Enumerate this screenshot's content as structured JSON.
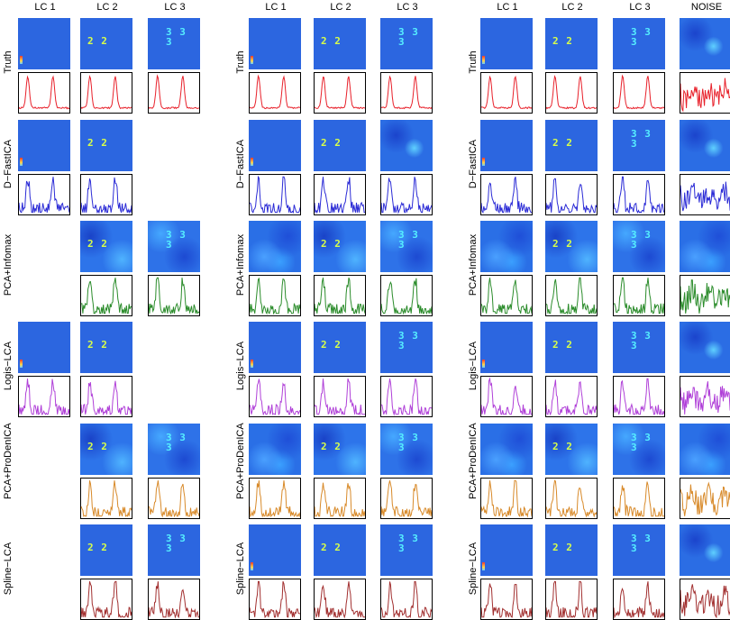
{
  "panels": [
    {
      "id": "panel-1",
      "columns": [
        "LC 1",
        "LC 2",
        "LC 3"
      ],
      "rows": [
        {
          "label": "Truth",
          "color": "#e8202a",
          "cells": [
            {
              "empty": false,
              "img": "lc1"
            },
            {
              "empty": false,
              "img": "lc2",
              "text": "2 2"
            },
            {
              "empty": false,
              "img": "lc3",
              "text": "3 3 3"
            }
          ]
        },
        {
          "label": "D−FastICA",
          "color": "#2b2bd6",
          "cells": [
            {
              "empty": false,
              "img": "lc1"
            },
            {
              "empty": false,
              "img": "lc2",
              "text": "2 2"
            },
            {
              "empty": true
            }
          ]
        },
        {
          "label": "PCA+Infomax",
          "color": "#2b8c2b",
          "cells": [
            {
              "empty": true
            },
            {
              "empty": false,
              "img": "mix2",
              "text": "2 2"
            },
            {
              "empty": false,
              "img": "mix3",
              "text": "3 3 3"
            }
          ]
        },
        {
          "label": "Logis−LCA",
          "color": "#b040d8",
          "cells": [
            {
              "empty": false,
              "img": "lc1"
            },
            {
              "empty": false,
              "img": "lc2",
              "text": "2 2"
            },
            {
              "empty": true
            }
          ]
        },
        {
          "label": "PCA+ProDenICA",
          "color": "#d88a2a",
          "cells": [
            {
              "empty": true
            },
            {
              "empty": false,
              "img": "mix2",
              "text": "2 2"
            },
            {
              "empty": false,
              "img": "mix3",
              "text": "3 3 3"
            }
          ]
        },
        {
          "label": "Spline−LCA",
          "color": "#a23030",
          "cells": [
            {
              "empty": true
            },
            {
              "empty": false,
              "img": "lc2",
              "text": "2 2"
            },
            {
              "empty": false,
              "img": "lc3",
              "text": "3 3 3"
            }
          ]
        }
      ]
    },
    {
      "id": "panel-2",
      "columns": [
        "LC 1",
        "LC 2",
        "LC 3"
      ],
      "rows": [
        {
          "label": "Truth",
          "color": "#e8202a",
          "cells": [
            {
              "empty": false,
              "img": "lc1"
            },
            {
              "empty": false,
              "img": "lc2",
              "text": "2 2"
            },
            {
              "empty": false,
              "img": "lc3",
              "text": "3 3 3"
            }
          ]
        },
        {
          "label": "D−FastICA",
          "color": "#2b2bd6",
          "cells": [
            {
              "empty": false,
              "img": "lc1"
            },
            {
              "empty": false,
              "img": "lc2",
              "text": "2 2"
            },
            {
              "empty": false,
              "img": "noise"
            }
          ]
        },
        {
          "label": "PCA+Infomax",
          "color": "#2b8c2b",
          "cells": [
            {
              "empty": false,
              "img": "blob"
            },
            {
              "empty": false,
              "img": "mix2",
              "text": "2 2"
            },
            {
              "empty": false,
              "img": "mix3",
              "text": "3 3 3"
            }
          ]
        },
        {
          "label": "Logis−LCA",
          "color": "#b040d8",
          "cells": [
            {
              "empty": false,
              "img": "lc1"
            },
            {
              "empty": false,
              "img": "lc2",
              "text": "2 2"
            },
            {
              "empty": false,
              "img": "lc3",
              "text": "3 3 3"
            }
          ]
        },
        {
          "label": "PCA+ProDenICA",
          "color": "#d88a2a",
          "cells": [
            {
              "empty": false,
              "img": "blob"
            },
            {
              "empty": false,
              "img": "mix2",
              "text": "2 2"
            },
            {
              "empty": false,
              "img": "mix3",
              "text": "3 3 3"
            }
          ]
        },
        {
          "label": "Spline−LCA",
          "color": "#a23030",
          "cells": [
            {
              "empty": false,
              "img": "lc1"
            },
            {
              "empty": false,
              "img": "lc2",
              "text": "2 2"
            },
            {
              "empty": false,
              "img": "lc3",
              "text": "3 3 3"
            }
          ]
        }
      ]
    },
    {
      "id": "panel-3",
      "columns": [
        "LC 1",
        "LC 2",
        "LC 3",
        "NOISE"
      ],
      "rows": [
        {
          "label": "Truth",
          "color": "#e8202a",
          "cells": [
            {
              "empty": false,
              "img": "lc1"
            },
            {
              "empty": false,
              "img": "lc2",
              "text": "2 2"
            },
            {
              "empty": false,
              "img": "lc3",
              "text": "3 3 3"
            },
            {
              "empty": false,
              "img": "noise",
              "noisy": true
            }
          ]
        },
        {
          "label": "D−FastICA",
          "color": "#2b2bd6",
          "cells": [
            {
              "empty": false,
              "img": "lc1"
            },
            {
              "empty": false,
              "img": "lc2",
              "text": "2 2"
            },
            {
              "empty": false,
              "img": "lc3",
              "text": "3 3 3"
            },
            {
              "empty": false,
              "img": "noise",
              "noisy": true
            }
          ]
        },
        {
          "label": "PCA+Infomax",
          "color": "#2b8c2b",
          "cells": [
            {
              "empty": false,
              "img": "blob"
            },
            {
              "empty": false,
              "img": "mix2",
              "text": "2 2"
            },
            {
              "empty": false,
              "img": "mix3",
              "text": "3 3 3"
            },
            {
              "empty": false,
              "img": "blob",
              "noisy": true
            }
          ]
        },
        {
          "label": "Logis−LCA",
          "color": "#b040d8",
          "cells": [
            {
              "empty": false,
              "img": "lc1"
            },
            {
              "empty": false,
              "img": "lc2",
              "text": "2 2"
            },
            {
              "empty": false,
              "img": "lc3",
              "text": "3 3 3"
            },
            {
              "empty": false,
              "img": "noise",
              "noisy": true
            }
          ]
        },
        {
          "label": "PCA+ProDenICA",
          "color": "#d88a2a",
          "cells": [
            {
              "empty": false,
              "img": "blob"
            },
            {
              "empty": false,
              "img": "mix2",
              "text": "2 2"
            },
            {
              "empty": false,
              "img": "mix3",
              "text": "3 3 3"
            },
            {
              "empty": false,
              "img": "blob",
              "noisy": true
            }
          ]
        },
        {
          "label": "Spline−LCA",
          "color": "#a23030",
          "cells": [
            {
              "empty": false,
              "img": "lc1"
            },
            {
              "empty": false,
              "img": "lc2",
              "text": "2 2"
            },
            {
              "empty": false,
              "img": "lc3",
              "text": "3 3 3"
            },
            {
              "empty": false,
              "img": "noise",
              "noisy": true
            }
          ]
        }
      ]
    }
  ]
}
